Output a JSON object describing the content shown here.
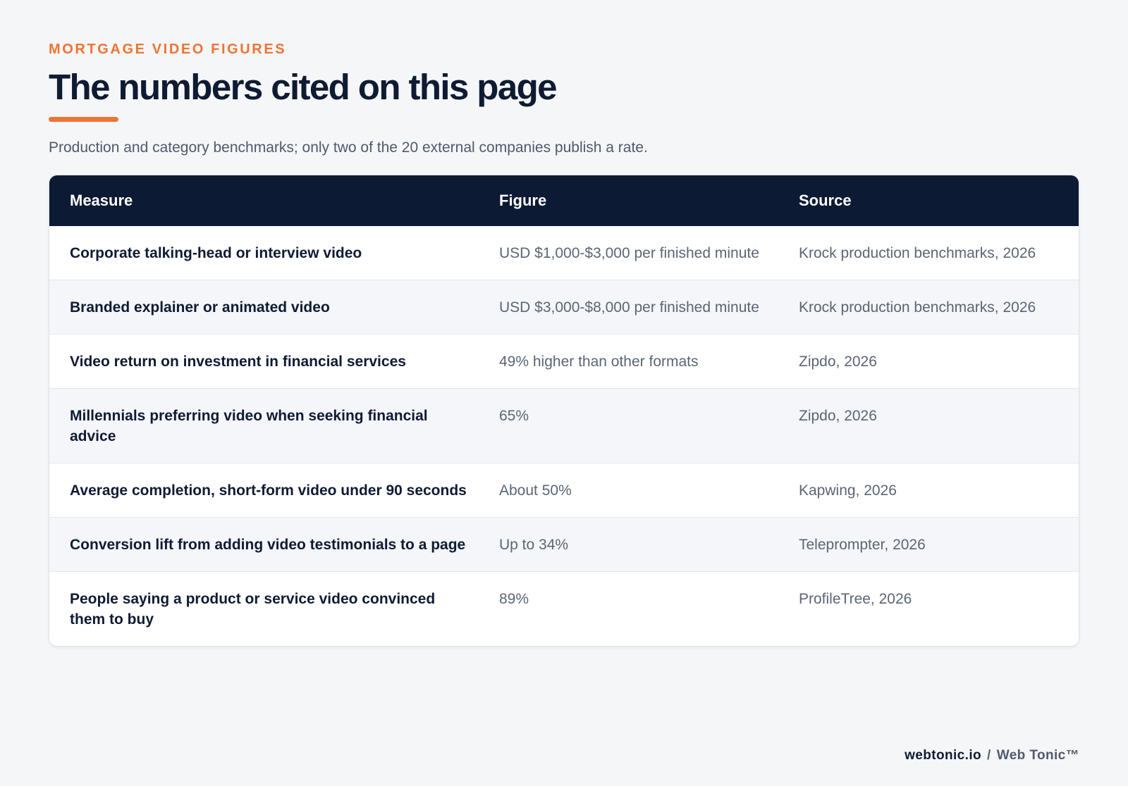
{
  "header": {
    "eyebrow": "MORTGAGE VIDEO FIGURES",
    "title": "The numbers cited on this page",
    "subtitle": "Production and category benchmarks; only two of the 20 external companies publish a rate."
  },
  "table": {
    "columns": [
      "Measure",
      "Figure",
      "Source"
    ],
    "rows": [
      {
        "measure": "Corporate talking-head or interview video",
        "figure": "USD $1,000-$3,000 per finished minute",
        "source": "Krock production benchmarks, 2026"
      },
      {
        "measure": "Branded explainer or animated video",
        "figure": "USD $3,000-$8,000 per finished minute",
        "source": "Krock production benchmarks, 2026"
      },
      {
        "measure": "Video return on investment in financial services",
        "figure": "49% higher than other formats",
        "source": "Zipdo, 2026"
      },
      {
        "measure": "Millennials preferring video when seeking financial advice",
        "figure": "65%",
        "source": "Zipdo, 2026"
      },
      {
        "measure": "Average completion, short-form video under 90 seconds",
        "figure": "About 50%",
        "source": "Kapwing, 2026"
      },
      {
        "measure": "Conversion lift from adding video testimonials to a page",
        "figure": "Up to 34%",
        "source": "Teleprompter, 2026"
      },
      {
        "measure": "People saying a product or service video convinced them to buy",
        "figure": "89%",
        "source": "ProfileTree, 2026"
      }
    ]
  },
  "footer": {
    "domain": "webtonic.io",
    "separator": "/",
    "brand": "Web Tonic™"
  },
  "colors": {
    "accent": "#ee7433",
    "header_bg": "#0d1a33",
    "page_bg": "#f5f6f8"
  }
}
